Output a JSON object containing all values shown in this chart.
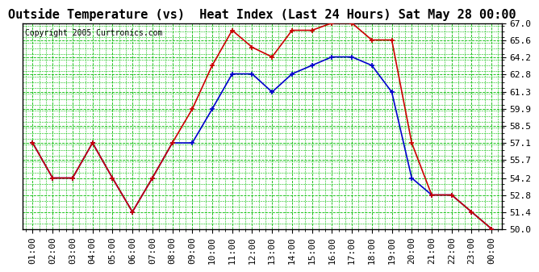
{
  "title": "Outside Temperature (vs)  Heat Index (Last 24 Hours) Sat May 28 00:00",
  "copyright": "Copyright 2005 Curtronics.com",
  "x_labels": [
    "01:00",
    "02:00",
    "03:00",
    "04:00",
    "05:00",
    "06:00",
    "07:00",
    "08:00",
    "09:00",
    "10:00",
    "11:00",
    "12:00",
    "13:00",
    "14:00",
    "15:00",
    "16:00",
    "17:00",
    "18:00",
    "19:00",
    "20:00",
    "21:00",
    "22:00",
    "23:00",
    "00:00"
  ],
  "y_min": 50.0,
  "y_max": 67.0,
  "y_ticks": [
    50.0,
    51.4,
    52.8,
    54.2,
    55.7,
    57.1,
    58.5,
    59.9,
    61.3,
    62.8,
    64.2,
    65.6,
    67.0
  ],
  "blue_line": [
    57.1,
    54.2,
    54.2,
    57.1,
    54.2,
    51.4,
    54.2,
    57.1,
    57.1,
    59.9,
    62.8,
    62.8,
    61.3,
    62.8,
    63.5,
    64.2,
    64.2,
    63.5,
    61.3,
    54.2,
    52.8,
    52.8,
    51.4,
    50.0
  ],
  "red_line": [
    57.1,
    54.2,
    54.2,
    57.1,
    54.2,
    51.4,
    54.2,
    57.1,
    59.9,
    63.5,
    66.4,
    65.0,
    64.2,
    66.4,
    66.4,
    67.0,
    67.0,
    65.6,
    65.6,
    57.1,
    52.8,
    52.8,
    51.4,
    50.0
  ],
  "blue_color": "#0000cc",
  "red_color": "#cc0000",
  "bg_color": "#ffffff",
  "plot_bg_color": "#ffffff",
  "grid_color": "#00bb00",
  "title_fontsize": 11,
  "tick_fontsize": 8,
  "copyright_fontsize": 7
}
